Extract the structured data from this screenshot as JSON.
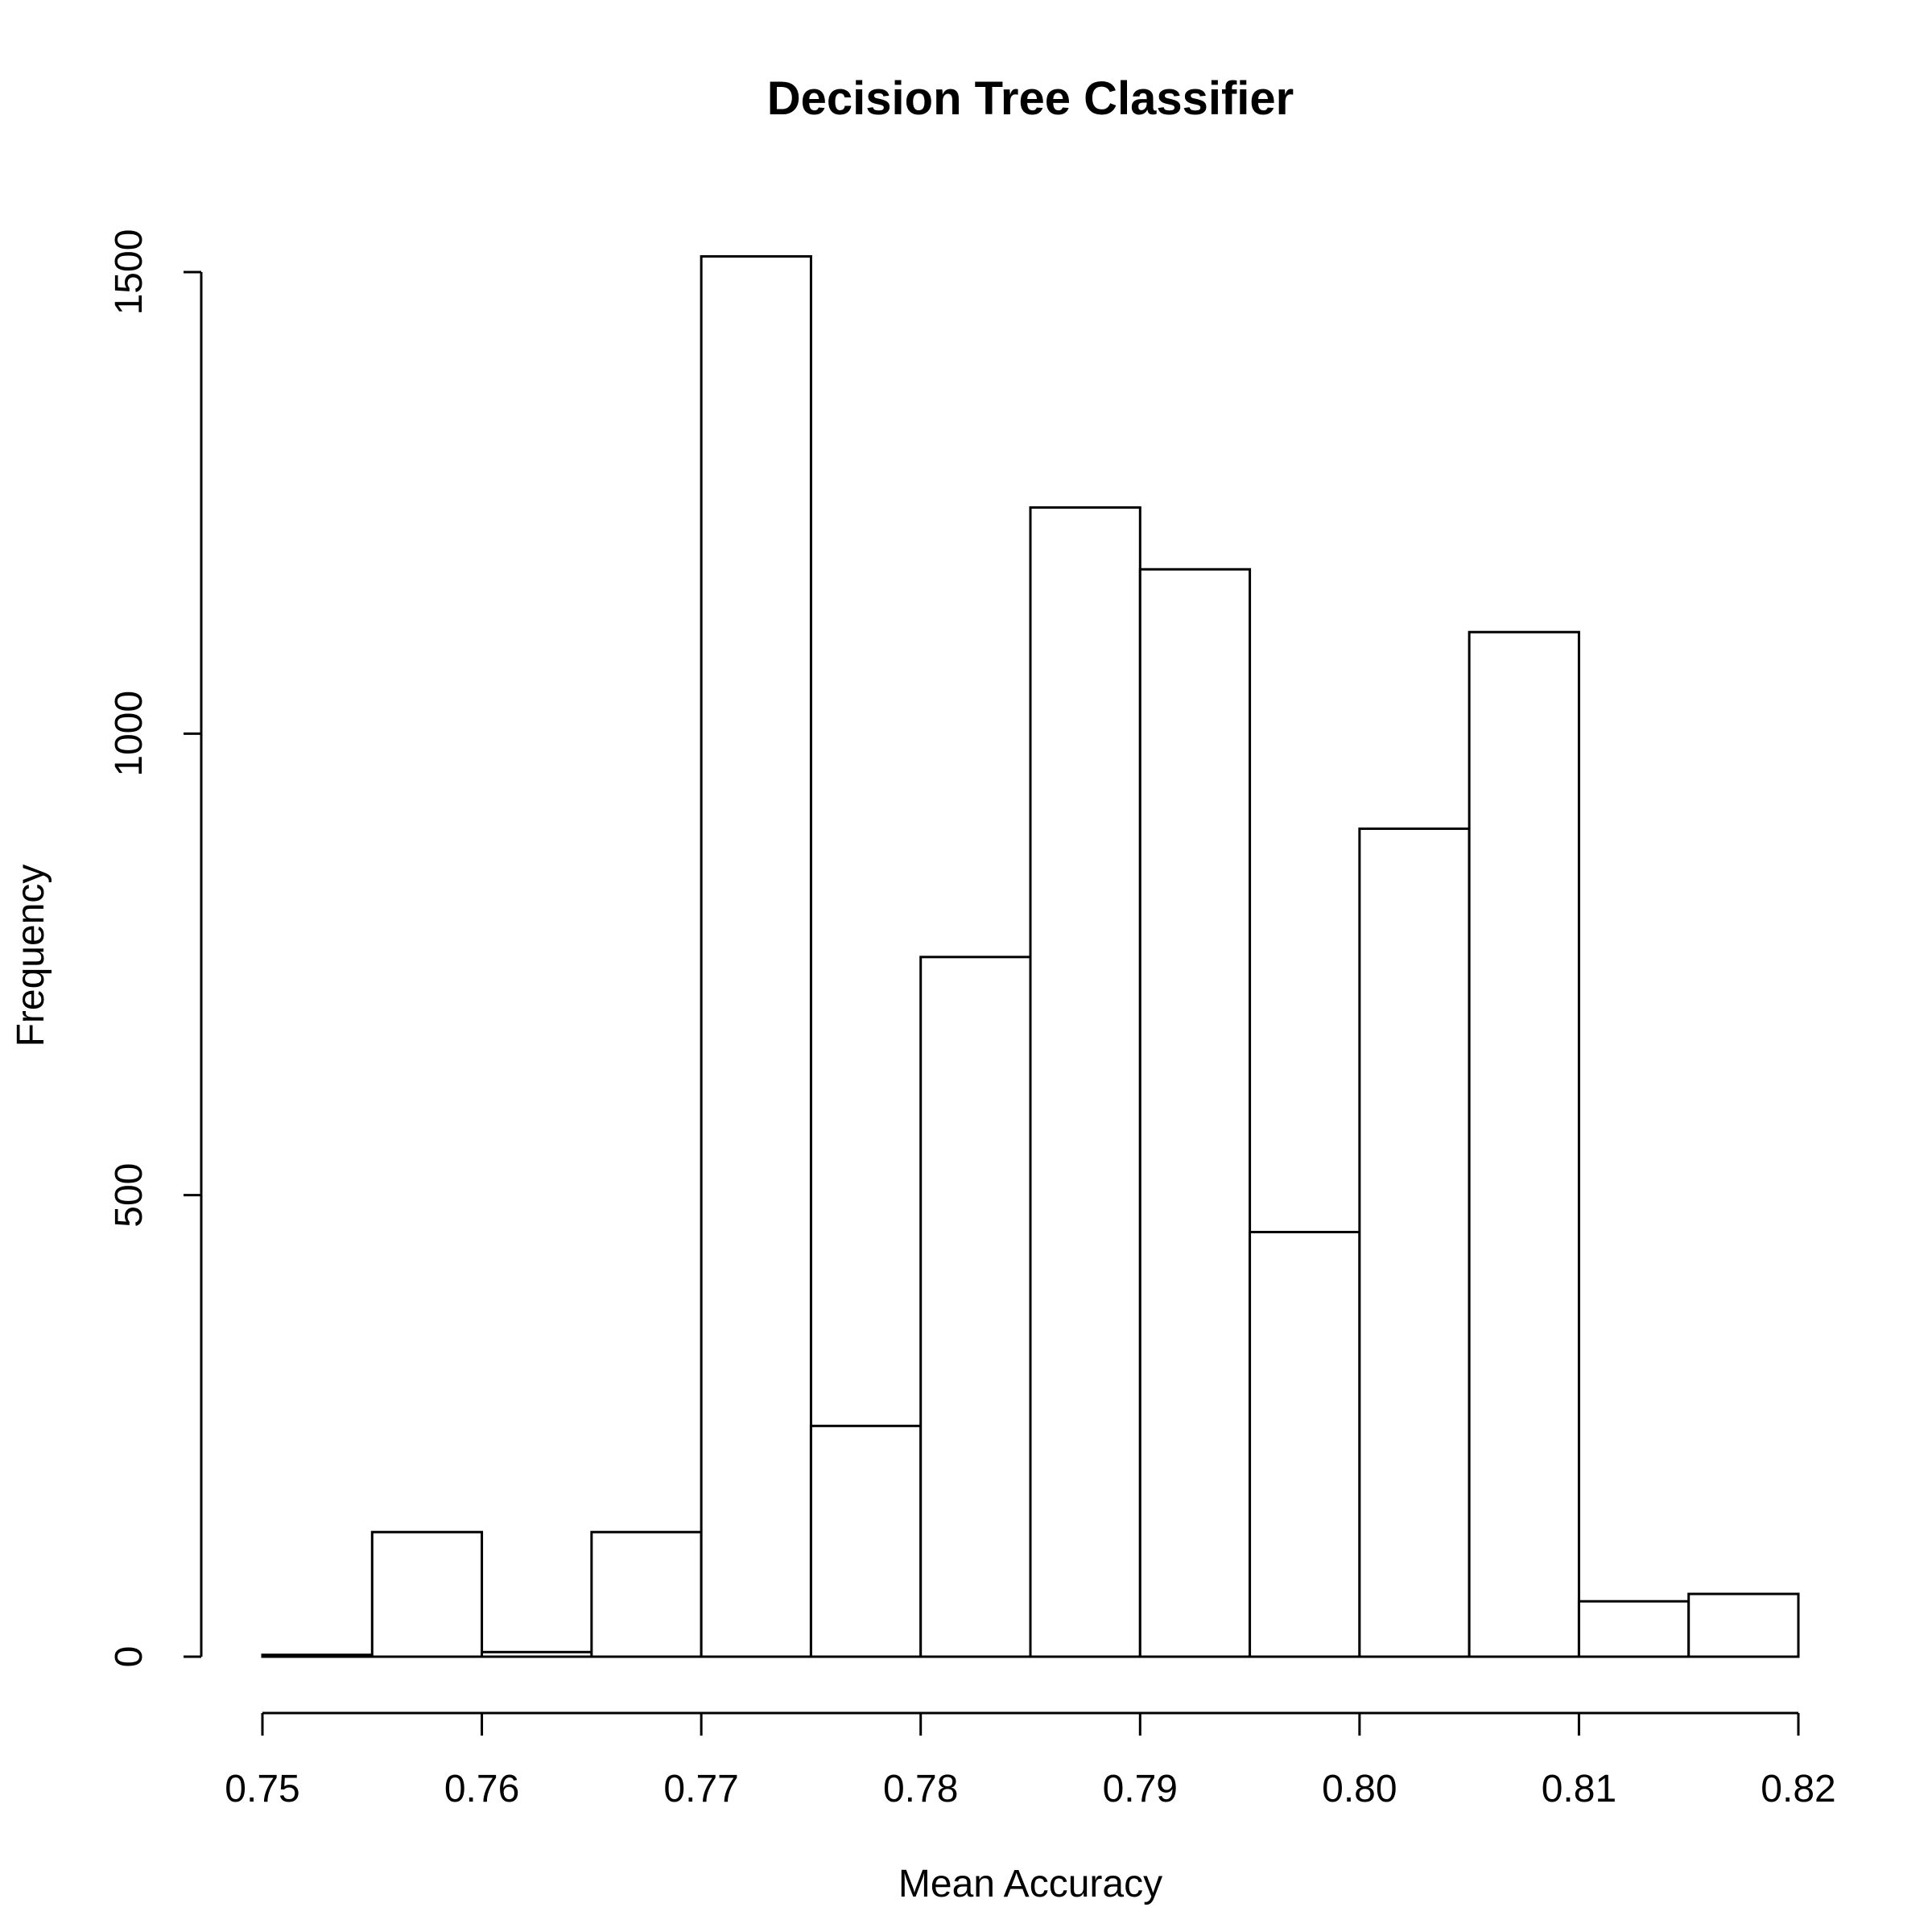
{
  "chart_data": {
    "type": "bar",
    "subtype": "histogram",
    "title": "Decision Tree Classifier",
    "xlabel": "Mean Accuracy",
    "ylabel": "Frequency",
    "bin_edges": [
      0.75,
      0.755,
      0.76,
      0.765,
      0.77,
      0.775,
      0.78,
      0.785,
      0.79,
      0.795,
      0.8,
      0.805,
      0.81,
      0.815,
      0.82
    ],
    "values": [
      2,
      135,
      5,
      135,
      1517,
      250,
      758,
      1245,
      1178,
      460,
      897,
      1110,
      60,
      68
    ],
    "xlim": [
      0.75,
      0.82
    ],
    "ylim": [
      0,
      1500
    ],
    "x_ticks": [
      0.75,
      0.76,
      0.77,
      0.78,
      0.79,
      0.8,
      0.81,
      0.82
    ],
    "x_tick_labels": [
      "0.75",
      "0.76",
      "0.77",
      "0.78",
      "0.79",
      "0.80",
      "0.81",
      "0.82"
    ],
    "y_ticks": [
      0,
      500,
      1000,
      1500
    ],
    "y_tick_labels": [
      "0",
      "500",
      "1000",
      "1500"
    ],
    "grid": false,
    "legend": "none",
    "colors": {
      "bar_fill": "#ffffff",
      "bar_stroke": "#000000",
      "axis": "#000000",
      "text": "#000000",
      "background": "#ffffff"
    }
  }
}
